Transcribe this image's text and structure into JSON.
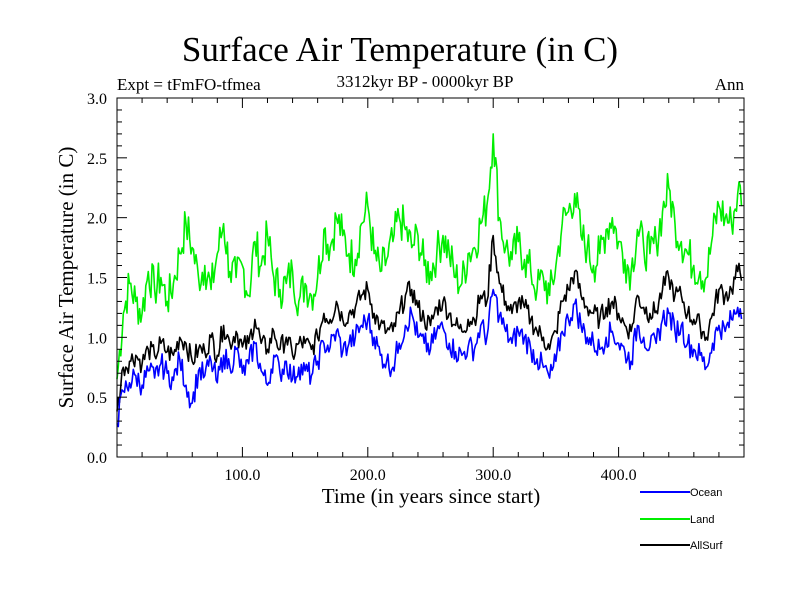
{
  "header": {
    "title": "Surface Air Temperature (in C)",
    "subtitle": "3312kyr BP - 0000kyr BP",
    "experiment": "Expt = tFmFO-tfmea",
    "season": "Ann"
  },
  "chart_data": {
    "type": "line",
    "title": "Surface Air Temperature (in C)",
    "subtitle": "3312kyr BP - 0000kyr BP",
    "xlabel": "Time (in years since start)",
    "ylabel": "Surface Air Temperature (in C)",
    "xlim": [
      0,
      500
    ],
    "ylim": [
      0.0,
      3.0
    ],
    "x_major_ticks": [
      100,
      200,
      300,
      400
    ],
    "x_tick_labels": [
      "100.0",
      "200.0",
      "300.0",
      "400.0"
    ],
    "x_minor_step": 20,
    "y_major_ticks": [
      0.0,
      0.5,
      1.0,
      1.5,
      2.0,
      2.5,
      3.0
    ],
    "y_tick_labels": [
      "0.0",
      "0.5",
      "1.0",
      "1.5",
      "2.0",
      "2.5",
      "3.0"
    ],
    "y_minor_step": 0.1,
    "grid": false,
    "legend_position": "bottom-right-outside",
    "x_step": 5,
    "x_start": 0,
    "series": [
      {
        "name": "Ocean",
        "color": "#0000ff",
        "values": [
          0.28,
          0.55,
          0.62,
          0.68,
          0.6,
          0.72,
          0.66,
          0.78,
          0.7,
          0.64,
          0.82,
          0.6,
          0.45,
          0.72,
          0.68,
          0.8,
          0.62,
          0.85,
          0.75,
          0.9,
          0.7,
          0.78,
          0.95,
          0.72,
          0.6,
          0.85,
          0.7,
          0.8,
          0.65,
          0.75,
          0.72,
          0.68,
          0.8,
          0.95,
          0.92,
          1.05,
          0.88,
          0.95,
          1.0,
          1.1,
          1.15,
          1.0,
          0.85,
          0.8,
          0.75,
          0.95,
          1.1,
          1.2,
          1.0,
          0.95,
          0.9,
          1.05,
          1.08,
          0.95,
          0.88,
          0.85,
          0.92,
          0.9,
          1.1,
          1.0,
          1.4,
          1.18,
          1.05,
          0.95,
          1.05,
          1.0,
          0.9,
          0.82,
          0.75,
          0.66,
          0.8,
          1.05,
          1.15,
          1.28,
          1.1,
          1.0,
          0.95,
          0.9,
          1.0,
          1.05,
          0.95,
          0.88,
          0.8,
          1.1,
          1.0,
          0.92,
          0.95,
          1.15,
          1.2,
          1.05,
          1.1,
          0.95,
          0.9,
          0.85,
          0.75,
          0.95,
          1.1,
          1.05,
          1.15,
          1.25
        ]
      },
      {
        "name": "Land",
        "color": "#00ee00",
        "values": [
          0.65,
          1.2,
          1.45,
          1.3,
          1.2,
          1.55,
          1.4,
          1.5,
          1.3,
          1.45,
          1.7,
          1.95,
          1.75,
          1.5,
          1.6,
          1.4,
          1.7,
          1.95,
          1.55,
          1.5,
          1.6,
          1.35,
          1.8,
          1.6,
          1.85,
          1.5,
          1.4,
          1.45,
          1.55,
          1.3,
          1.45,
          1.35,
          1.5,
          1.9,
          1.75,
          2.0,
          1.85,
          1.7,
          1.65,
          1.95,
          2.1,
          1.7,
          1.55,
          1.65,
          1.8,
          2.0,
          1.9,
          1.75,
          1.85,
          1.6,
          1.55,
          1.7,
          1.85,
          1.7,
          1.5,
          1.45,
          1.7,
          1.75,
          1.95,
          2.1,
          2.7,
          2.0,
          1.75,
          1.65,
          1.8,
          1.65,
          1.55,
          1.4,
          1.5,
          1.35,
          1.6,
          1.95,
          2.05,
          2.2,
          1.85,
          1.75,
          1.6,
          1.7,
          1.9,
          2.0,
          1.8,
          1.65,
          1.55,
          1.9,
          1.75,
          1.7,
          1.8,
          2.05,
          2.25,
          1.95,
          1.8,
          1.7,
          1.6,
          1.55,
          1.5,
          1.85,
          2.1,
          2.0,
          1.95,
          2.2
        ]
      },
      {
        "name": "AllSurf",
        "color": "#000000",
        "values": [
          0.38,
          0.75,
          0.8,
          0.85,
          0.78,
          0.9,
          0.85,
          0.95,
          0.88,
          0.85,
          1.0,
          0.95,
          0.8,
          0.9,
          0.88,
          1.0,
          0.85,
          1.1,
          0.95,
          1.05,
          0.92,
          0.95,
          1.15,
          0.95,
          0.9,
          1.05,
          0.9,
          1.0,
          0.85,
          0.95,
          0.95,
          0.9,
          1.0,
          1.2,
          1.15,
          1.3,
          1.15,
          1.2,
          1.25,
          1.35,
          1.4,
          1.2,
          1.1,
          1.05,
          1.05,
          1.2,
          1.35,
          1.4,
          1.25,
          1.15,
          1.1,
          1.25,
          1.3,
          1.2,
          1.1,
          1.05,
          1.15,
          1.15,
          1.35,
          1.3,
          1.85,
          1.45,
          1.3,
          1.2,
          1.3,
          1.25,
          1.15,
          1.05,
          1.0,
          0.9,
          1.05,
          1.3,
          1.4,
          1.55,
          1.35,
          1.25,
          1.2,
          1.15,
          1.25,
          1.3,
          1.2,
          1.1,
          1.05,
          1.35,
          1.25,
          1.2,
          1.22,
          1.4,
          1.5,
          1.35,
          1.35,
          1.2,
          1.15,
          1.1,
          1.0,
          1.2,
          1.4,
          1.35,
          1.4,
          1.55
        ]
      }
    ]
  },
  "legend": {
    "items": [
      {
        "label": "Ocean",
        "color": "#0000ff"
      },
      {
        "label": "Land",
        "color": "#00ee00"
      },
      {
        "label": "AllSurf",
        "color": "#000000"
      }
    ]
  }
}
